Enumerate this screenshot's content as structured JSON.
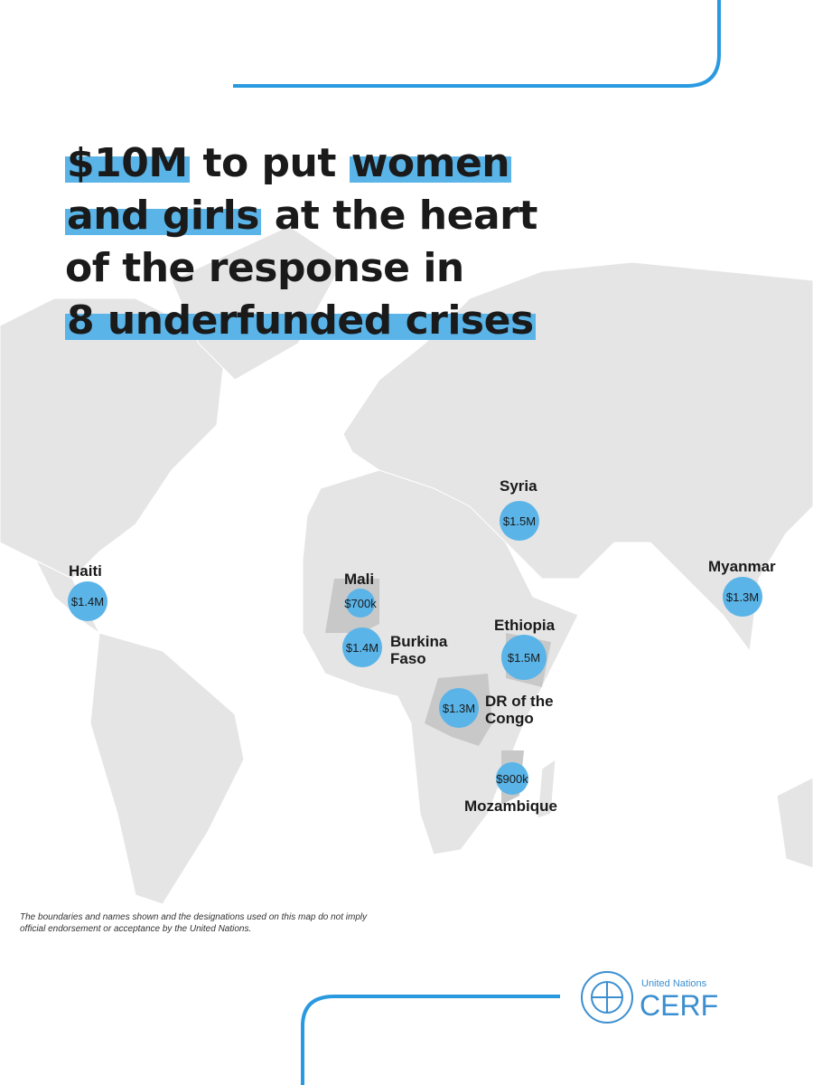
{
  "title": {
    "segments": [
      "$10M",
      "to put",
      "women",
      "and girls",
      "at the heart",
      "of the response in",
      "8 underfunded crises"
    ]
  },
  "crises": [
    {
      "name": "Haiti",
      "amount": "$1.4M"
    },
    {
      "name": "Mali",
      "amount": "$700k"
    },
    {
      "name": "Burkina Faso",
      "amount": "$1.4M"
    },
    {
      "name": "Syria",
      "amount": "$1.5M"
    },
    {
      "name": "Ethiopia",
      "amount": "$1.5M"
    },
    {
      "name": "DR of the Congo",
      "amount": "$1.3M"
    },
    {
      "name": "Mozambique",
      "amount": "$900k"
    },
    {
      "name": "Myanmar",
      "amount": "$1.3M"
    }
  ],
  "disclaimer": "The boundaries and names shown and the designations used on this map do not imply official endorsement or acceptance by the United Nations.",
  "logo": {
    "org": "United Nations",
    "name": "CERF"
  }
}
